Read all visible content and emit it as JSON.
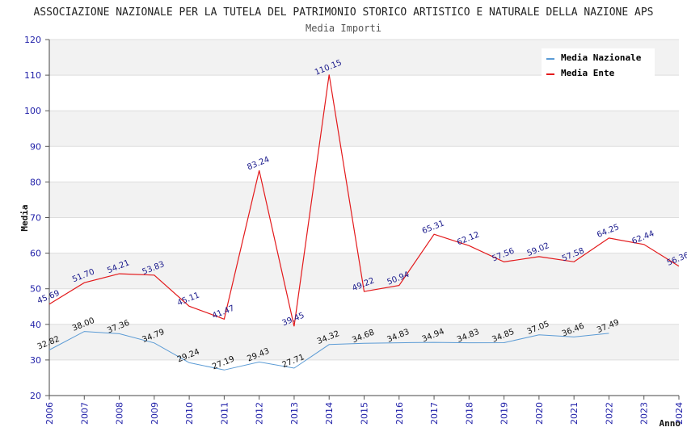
{
  "chart_data": {
    "type": "line",
    "title": "ASSOCIAZIONE NAZIONALE PER LA TUTELA DEL PATRIMONIO STORICO ARTISTICO E NATURALE DELLA NAZIONE APS",
    "subtitle": "Media Importi",
    "xlabel": "Anno",
    "ylabel": "Media",
    "ylim": [
      20,
      120
    ],
    "yticks": [
      20,
      30,
      40,
      50,
      60,
      70,
      80,
      90,
      100,
      110,
      120
    ],
    "x": [
      "2006",
      "2007",
      "2008",
      "2009",
      "2010",
      "2011",
      "2012",
      "2013",
      "2014",
      "2015",
      "2016",
      "2017",
      "2018",
      "2019",
      "2020",
      "2021",
      "2022",
      "2023",
      "2024"
    ],
    "grid": "horizontal-bands",
    "legend_position": "top-right",
    "series": [
      {
        "name": "Media Nazionale",
        "color": "#5b9bd5",
        "values": [
          32.82,
          38.0,
          37.36,
          34.79,
          29.24,
          27.19,
          29.43,
          27.71,
          34.32,
          34.68,
          34.83,
          34.94,
          34.83,
          34.85,
          37.05,
          36.46,
          37.49,
          null,
          null
        ],
        "labels": [
          "32.82",
          "38.00",
          "37.36",
          "34.79",
          "29.24",
          "27.19",
          "29.43",
          "27.71",
          "34.32",
          "34.68",
          "34.83",
          "34.94",
          "34.83",
          "34.85",
          "37.05",
          "36.46",
          "37.49",
          null,
          null
        ]
      },
      {
        "name": "Media Ente",
        "color": "#e31a1c",
        "values": [
          45.69,
          51.7,
          54.21,
          53.83,
          45.11,
          41.47,
          83.24,
          39.45,
          110.15,
          49.22,
          50.94,
          65.31,
          62.12,
          57.56,
          59.02,
          57.58,
          64.25,
          62.44,
          56.36
        ],
        "labels": [
          "45.69",
          "51.70",
          "54.21",
          "53.83",
          "45.11",
          "41.47",
          "83.24",
          "39.45",
          "110.15",
          "49.22",
          "50.94",
          "65.31",
          "62.12",
          "57.56",
          "59.02",
          "57.58",
          "64.25",
          "62.44",
          "56.36"
        ]
      }
    ]
  }
}
